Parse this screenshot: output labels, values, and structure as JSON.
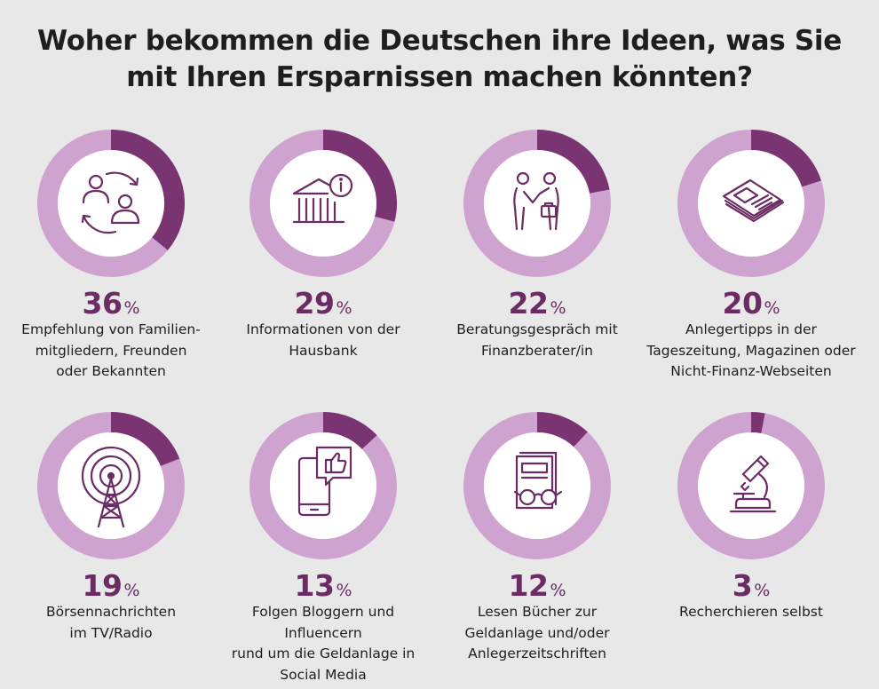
{
  "title": {
    "line1": "Woher bekommen die Deutschen ihre Ideen, was Sie",
    "line2": "mit Ihren Ersparnissen machen könnten?"
  },
  "colors": {
    "filled": "#7b3472",
    "track": "#cfa3cf",
    "background": "#e8e8e8"
  },
  "chart_data": {
    "type": "donut-grid",
    "unit": "%",
    "items": [
      {
        "value": 36,
        "icon": "family-exchange-icon",
        "label_lines": [
          "Empfehlung von Familien-",
          "mitgliedern, Freunden",
          "oder Bekannten"
        ]
      },
      {
        "value": 29,
        "icon": "bank-info-icon",
        "label_lines": [
          "Informationen von der",
          "Hausbank"
        ]
      },
      {
        "value": 22,
        "icon": "handshake-icon",
        "label_lines": [
          "Beratungsgespräch mit",
          "Finanzberater/in"
        ]
      },
      {
        "value": 20,
        "icon": "newspaper-icon",
        "label_lines": [
          "Anlegertipps in der",
          "Tageszeitung, Magazinen oder",
          "Nicht-Finanz-Webseiten"
        ]
      },
      {
        "value": 19,
        "icon": "broadcast-tower-icon",
        "label_lines": [
          "Börsennachrichten",
          "im TV/Radio"
        ]
      },
      {
        "value": 13,
        "icon": "smartphone-like-icon",
        "label_lines": [
          "Folgen Bloggern und Influencern",
          "rund um die Geldanlage in",
          "Social Media"
        ]
      },
      {
        "value": 12,
        "icon": "book-glasses-icon",
        "label_lines": [
          "Lesen Bücher zur",
          "Geldanlage und/oder",
          "Anlegerzeitschriften"
        ]
      },
      {
        "value": 3,
        "icon": "microscope-icon",
        "label_lines": [
          "Recherchieren selbst"
        ]
      }
    ]
  }
}
